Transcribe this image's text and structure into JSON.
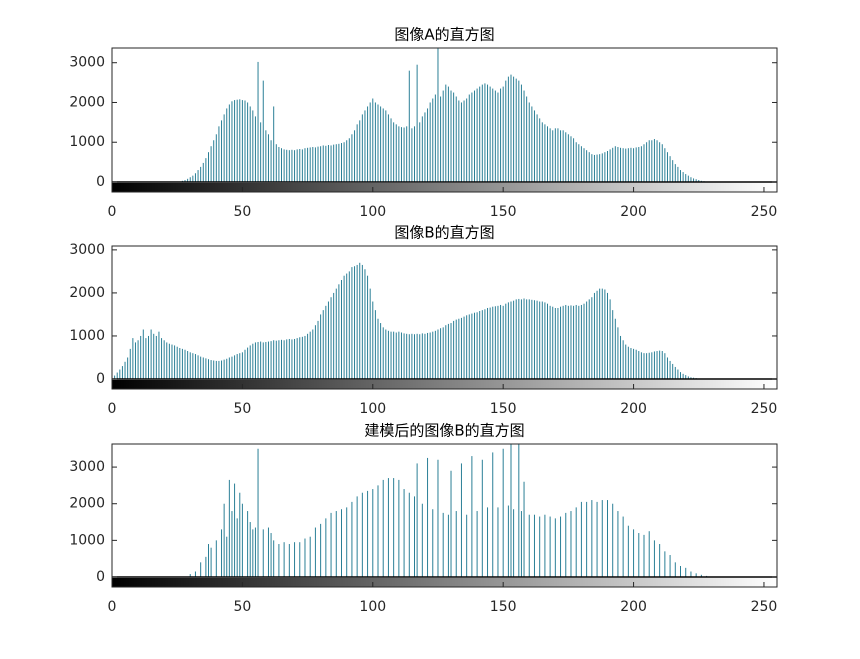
{
  "chart_data": [
    {
      "type": "stem",
      "title": "图像A的直方图",
      "color": "#2a7f96",
      "xlim": [
        0,
        255
      ],
      "xticks": [
        0,
        50,
        100,
        150,
        200,
        250
      ],
      "ylim": [
        0,
        3370
      ],
      "yticks": [
        0,
        1000,
        2000,
        3000
      ],
      "x": [
        26,
        27,
        28,
        29,
        30,
        31,
        32,
        33,
        34,
        35,
        36,
        37,
        38,
        39,
        40,
        41,
        42,
        43,
        44,
        45,
        46,
        47,
        48,
        49,
        50,
        51,
        52,
        53,
        54,
        55,
        56,
        57,
        58,
        59,
        60,
        61,
        62,
        63,
        64,
        65,
        66,
        67,
        68,
        69,
        70,
        71,
        72,
        73,
        74,
        75,
        76,
        77,
        78,
        79,
        80,
        81,
        82,
        83,
        84,
        85,
        86,
        87,
        88,
        89,
        90,
        91,
        92,
        93,
        94,
        95,
        96,
        97,
        98,
        99,
        100,
        101,
        102,
        103,
        104,
        105,
        106,
        107,
        108,
        109,
        110,
        111,
        112,
        113,
        114,
        115,
        116,
        117,
        118,
        119,
        120,
        121,
        122,
        123,
        124,
        125,
        126,
        127,
        128,
        129,
        130,
        131,
        132,
        133,
        134,
        135,
        136,
        137,
        138,
        139,
        140,
        141,
        142,
        143,
        144,
        145,
        146,
        147,
        148,
        149,
        150,
        151,
        152,
        153,
        154,
        155,
        156,
        157,
        158,
        159,
        160,
        161,
        162,
        163,
        164,
        165,
        166,
        167,
        168,
        169,
        170,
        171,
        172,
        173,
        174,
        175,
        176,
        177,
        178,
        179,
        180,
        181,
        182,
        183,
        184,
        185,
        186,
        187,
        188,
        189,
        190,
        191,
        192,
        193,
        194,
        195,
        196,
        197,
        198,
        199,
        200,
        201,
        202,
        203,
        204,
        205,
        206,
        207,
        208,
        209,
        210,
        211,
        212,
        213,
        214,
        215,
        216,
        217,
        218,
        219,
        220,
        221,
        222,
        223,
        224,
        225,
        226,
        227,
        228
      ],
      "values": [
        10,
        30,
        50,
        80,
        120,
        160,
        220,
        300,
        380,
        480,
        600,
        750,
        900,
        1050,
        1200,
        1400,
        1550,
        1700,
        1850,
        1950,
        2030,
        2060,
        2070,
        2080,
        2060,
        2050,
        2000,
        1900,
        1800,
        1650,
        3020,
        1500,
        2550,
        1300,
        1200,
        1050,
        1900,
        950,
        880,
        850,
        820,
        810,
        800,
        810,
        800,
        820,
        830,
        820,
        850,
        860,
        870,
        880,
        870,
        890,
        900,
        920,
        910,
        930,
        920,
        940,
        950,
        960,
        980,
        1000,
        1050,
        1100,
        1200,
        1300,
        1450,
        1550,
        1700,
        1800,
        1900,
        2000,
        2100,
        2000,
        1950,
        1900,
        1850,
        1800,
        1700,
        1600,
        1500,
        1450,
        1400,
        1380,
        1370,
        1400,
        2800,
        1350,
        1400,
        2950,
        1500,
        1650,
        1750,
        1850,
        2000,
        2100,
        2200,
        3400,
        2150,
        2300,
        2450,
        2400,
        2300,
        2250,
        2150,
        2050,
        2000,
        2050,
        2100,
        2200,
        2250,
        2300,
        2350,
        2400,
        2450,
        2480,
        2450,
        2400,
        2350,
        2300,
        2250,
        2350,
        2400,
        2550,
        2650,
        2700,
        2650,
        2600,
        2550,
        2450,
        2300,
        2150,
        2000,
        1900,
        1800,
        1700,
        1600,
        1500,
        1450,
        1400,
        1350,
        1300,
        1350,
        1350,
        1300,
        1300,
        1250,
        1200,
        1150,
        1100,
        1000,
        950,
        900,
        850,
        800,
        750,
        700,
        680,
        690,
        700,
        720,
        750,
        780,
        820,
        860,
        900,
        880,
        860,
        850,
        840,
        850,
        860,
        850,
        870,
        880,
        900,
        950,
        1000,
        1050,
        1050,
        1080,
        1050,
        1000,
        950,
        850,
        750,
        650,
        550,
        450,
        380,
        300,
        250,
        200,
        160,
        120,
        90,
        70,
        50,
        30,
        20,
        10
      ]
    },
    {
      "type": "stem",
      "title": "图像B的直方图",
      "color": "#2a7f96",
      "xlim": [
        0,
        255
      ],
      "xticks": [
        0,
        50,
        100,
        150,
        200,
        250
      ],
      "ylim": [
        0,
        3090
      ],
      "yticks": [
        0,
        1000,
        2000,
        3000
      ],
      "x": [
        0,
        1,
        2,
        3,
        4,
        5,
        6,
        7,
        8,
        9,
        10,
        11,
        12,
        13,
        14,
        15,
        16,
        17,
        18,
        19,
        20,
        21,
        22,
        23,
        24,
        25,
        26,
        27,
        28,
        29,
        30,
        31,
        32,
        33,
        34,
        35,
        36,
        37,
        38,
        39,
        40,
        41,
        42,
        43,
        44,
        45,
        46,
        47,
        48,
        49,
        50,
        51,
        52,
        53,
        54,
        55,
        56,
        57,
        58,
        59,
        60,
        61,
        62,
        63,
        64,
        65,
        66,
        67,
        68,
        69,
        70,
        71,
        72,
        73,
        74,
        75,
        76,
        77,
        78,
        79,
        80,
        81,
        82,
        83,
        84,
        85,
        86,
        87,
        88,
        89,
        90,
        91,
        92,
        93,
        94,
        95,
        96,
        97,
        98,
        99,
        100,
        101,
        102,
        103,
        104,
        105,
        106,
        107,
        108,
        109,
        110,
        111,
        112,
        113,
        114,
        115,
        116,
        117,
        118,
        119,
        120,
        121,
        122,
        123,
        124,
        125,
        126,
        127,
        128,
        129,
        130,
        131,
        132,
        133,
        134,
        135,
        136,
        137,
        138,
        139,
        140,
        141,
        142,
        143,
        144,
        145,
        146,
        147,
        148,
        149,
        150,
        151,
        152,
        153,
        154,
        155,
        156,
        157,
        158,
        159,
        160,
        161,
        162,
        163,
        164,
        165,
        166,
        167,
        168,
        169,
        170,
        171,
        172,
        173,
        174,
        175,
        176,
        177,
        178,
        179,
        180,
        181,
        182,
        183,
        184,
        185,
        186,
        187,
        188,
        189,
        190,
        191,
        192,
        193,
        194,
        195,
        196,
        197,
        198,
        199,
        200,
        201,
        202,
        203,
        204,
        205,
        206,
        207,
        208,
        209,
        210,
        211,
        212,
        213,
        214,
        215,
        216,
        217,
        218,
        219,
        220,
        221,
        222,
        223,
        224,
        225
      ],
      "values": [
        40,
        80,
        150,
        220,
        300,
        400,
        500,
        700,
        950,
        850,
        900,
        1000,
        1150,
        950,
        1000,
        1150,
        1050,
        1000,
        1100,
        950,
        900,
        850,
        820,
        800,
        780,
        750,
        720,
        700,
        680,
        650,
        620,
        600,
        580,
        550,
        520,
        500,
        480,
        460,
        440,
        430,
        420,
        420,
        430,
        450,
        470,
        500,
        520,
        550,
        580,
        600,
        620,
        680,
        730,
        780,
        820,
        850,
        860,
        870,
        850,
        860,
        870,
        880,
        900,
        890,
        900,
        910,
        900,
        920,
        930,
        920,
        930,
        950,
        970,
        980,
        1000,
        1050,
        1100,
        1150,
        1250,
        1350,
        1500,
        1600,
        1700,
        1800,
        1900,
        2000,
        2100,
        2200,
        2300,
        2400,
        2450,
        2500,
        2600,
        2620,
        2650,
        2700,
        2650,
        2550,
        2400,
        2100,
        1800,
        1600,
        1400,
        1300,
        1200,
        1150,
        1120,
        1100,
        1100,
        1080,
        1100,
        1080,
        1060,
        1050,
        1040,
        1050,
        1040,
        1050,
        1040,
        1060,
        1050,
        1070,
        1080,
        1100,
        1120,
        1150,
        1180,
        1200,
        1250,
        1280,
        1300,
        1350,
        1380,
        1400,
        1420,
        1450,
        1480,
        1500,
        1520,
        1540,
        1550,
        1580,
        1600,
        1620,
        1650,
        1660,
        1680,
        1690,
        1700,
        1720,
        1700,
        1750,
        1780,
        1800,
        1820,
        1850,
        1860,
        1850,
        1870,
        1850,
        1850,
        1840,
        1830,
        1820,
        1800,
        1800,
        1780,
        1750,
        1700,
        1680,
        1650,
        1650,
        1680,
        1700,
        1720,
        1700,
        1710,
        1700,
        1720,
        1700,
        1720,
        1750,
        1800,
        1850,
        1900,
        2000,
        2050,
        2100,
        2100,
        2080,
        2000,
        1850,
        1600,
        1400,
        1200,
        1000,
        900,
        800,
        750,
        720,
        700,
        680,
        650,
        620,
        600,
        600,
        610,
        620,
        640,
        650,
        660,
        650,
        600,
        500,
        420,
        350,
        280,
        220,
        160,
        120,
        90,
        60,
        40,
        30,
        20,
        10
      ]
    },
    {
      "type": "stem",
      "title": "建模后的图像B的直方图",
      "color": "#2a7f96",
      "xlim": [
        0,
        255
      ],
      "xticks": [
        0,
        50,
        100,
        150,
        200,
        250
      ],
      "ylim": [
        0,
        3630
      ],
      "yticks": [
        0,
        1000,
        2000,
        3000
      ],
      "x": [
        30,
        32,
        34,
        36,
        37,
        38,
        40,
        42,
        43,
        44,
        45,
        46,
        47,
        48,
        49,
        50,
        52,
        53,
        54,
        55,
        56,
        58,
        60,
        61,
        62,
        64,
        66,
        68,
        70,
        72,
        74,
        76,
        78,
        80,
        82,
        84,
        86,
        88,
        90,
        92,
        94,
        96,
        98,
        100,
        102,
        104,
        106,
        108,
        110,
        112,
        114,
        116,
        117,
        119,
        121,
        123,
        125,
        127,
        129,
        130,
        132,
        134,
        136,
        138,
        140,
        142,
        144,
        146,
        148,
        150,
        152,
        153,
        154,
        156,
        157,
        158,
        160,
        162,
        164,
        166,
        168,
        170,
        172,
        174,
        176,
        178,
        180,
        182,
        184,
        186,
        188,
        190,
        192,
        194,
        196,
        198,
        200,
        202,
        204,
        206,
        208,
        210,
        212,
        214,
        216,
        218,
        220,
        222,
        224,
        226,
        228,
        230
      ],
      "values": [
        80,
        150,
        400,
        550,
        900,
        800,
        1000,
        1300,
        2000,
        1100,
        2650,
        1800,
        2550,
        1600,
        2300,
        2000,
        1800,
        1500,
        1300,
        1350,
        3500,
        1300,
        1350,
        1200,
        1000,
        900,
        950,
        900,
        950,
        950,
        1050,
        1100,
        1350,
        1450,
        1600,
        1750,
        1800,
        1850,
        1900,
        2050,
        2200,
        2300,
        2350,
        2400,
        2500,
        2650,
        2700,
        2700,
        2650,
        2400,
        2300,
        2200,
        3100,
        2000,
        3250,
        1850,
        3200,
        1750,
        1700,
        2900,
        1800,
        3100,
        1700,
        3300,
        1800,
        3200,
        1900,
        3400,
        1900,
        3500,
        1950,
        3650,
        1850,
        3650,
        1800,
        2600,
        1700,
        1700,
        1650,
        1700,
        1650,
        1600,
        1650,
        1750,
        1800,
        1900,
        2050,
        2050,
        2100,
        2050,
        2100,
        2100,
        2000,
        1800,
        1650,
        1400,
        1300,
        1200,
        1150,
        1250,
        1000,
        900,
        700,
        600,
        400,
        300,
        250,
        150,
        100,
        60,
        30,
        10
      ]
    }
  ]
}
